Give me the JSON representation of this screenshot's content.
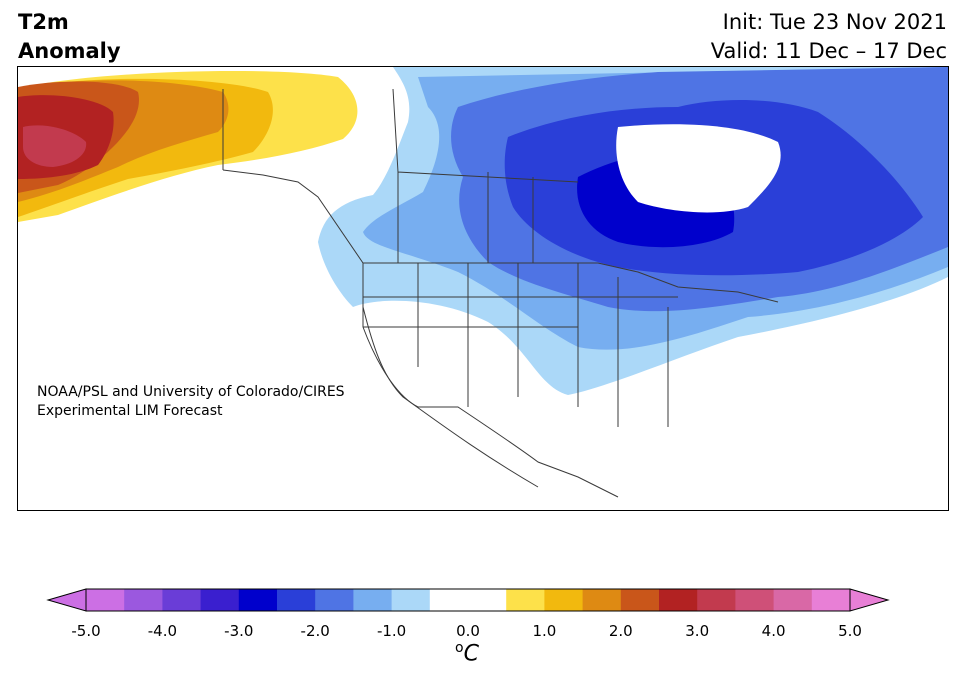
{
  "title": {
    "line1": "T2m",
    "line2": "Anomaly"
  },
  "forecast": {
    "init": "Init: Tue 23 Nov 2021",
    "valid": "Valid: 11 Dec – 17 Dec"
  },
  "credit": {
    "line1": "NOAA/PSL and University of Colorado/CIRES",
    "line2": "Experimental LIM Forecast"
  },
  "colorbar": {
    "ticks": [
      "-5.0",
      "-4.0",
      "-3.0",
      "-2.0",
      "-1.0",
      "0.0",
      "1.0",
      "2.0",
      "3.0",
      "4.0",
      "5.0"
    ],
    "unit_symbol": "o",
    "unit_letter": "C",
    "colors": [
      "#cc6fe4",
      "#9b58df",
      "#6a3dd7",
      "#3a1fcf",
      "#0000cc",
      "#2a3fd8",
      "#4f74e4",
      "#77aef0",
      "#abd8f8",
      "#ffffff",
      "#ffffff",
      "#fde14a",
      "#f2b90e",
      "#de8a13",
      "#c9561a",
      "#b22222",
      "#c23a4e",
      "#cf5078",
      "#d968a6",
      "#e87fd6"
    ],
    "under_color": "#cc6fe4",
    "over_color": "#e87fd6"
  },
  "map_colors": {
    "land": "#ffffff",
    "border": "#3a3a3a",
    "c_light_blue": "#abd8f8",
    "c_blue1": "#77aef0",
    "c_blue2": "#4f74e4",
    "c_blue3": "#2a3fd8",
    "c_blue4": "#0000cc",
    "c_yellow": "#fde14a",
    "c_gold": "#f2b90e",
    "c_orange": "#de8a13",
    "c_rust": "#c9561a",
    "c_red": "#b22222",
    "c_pink": "#c23a4e"
  }
}
